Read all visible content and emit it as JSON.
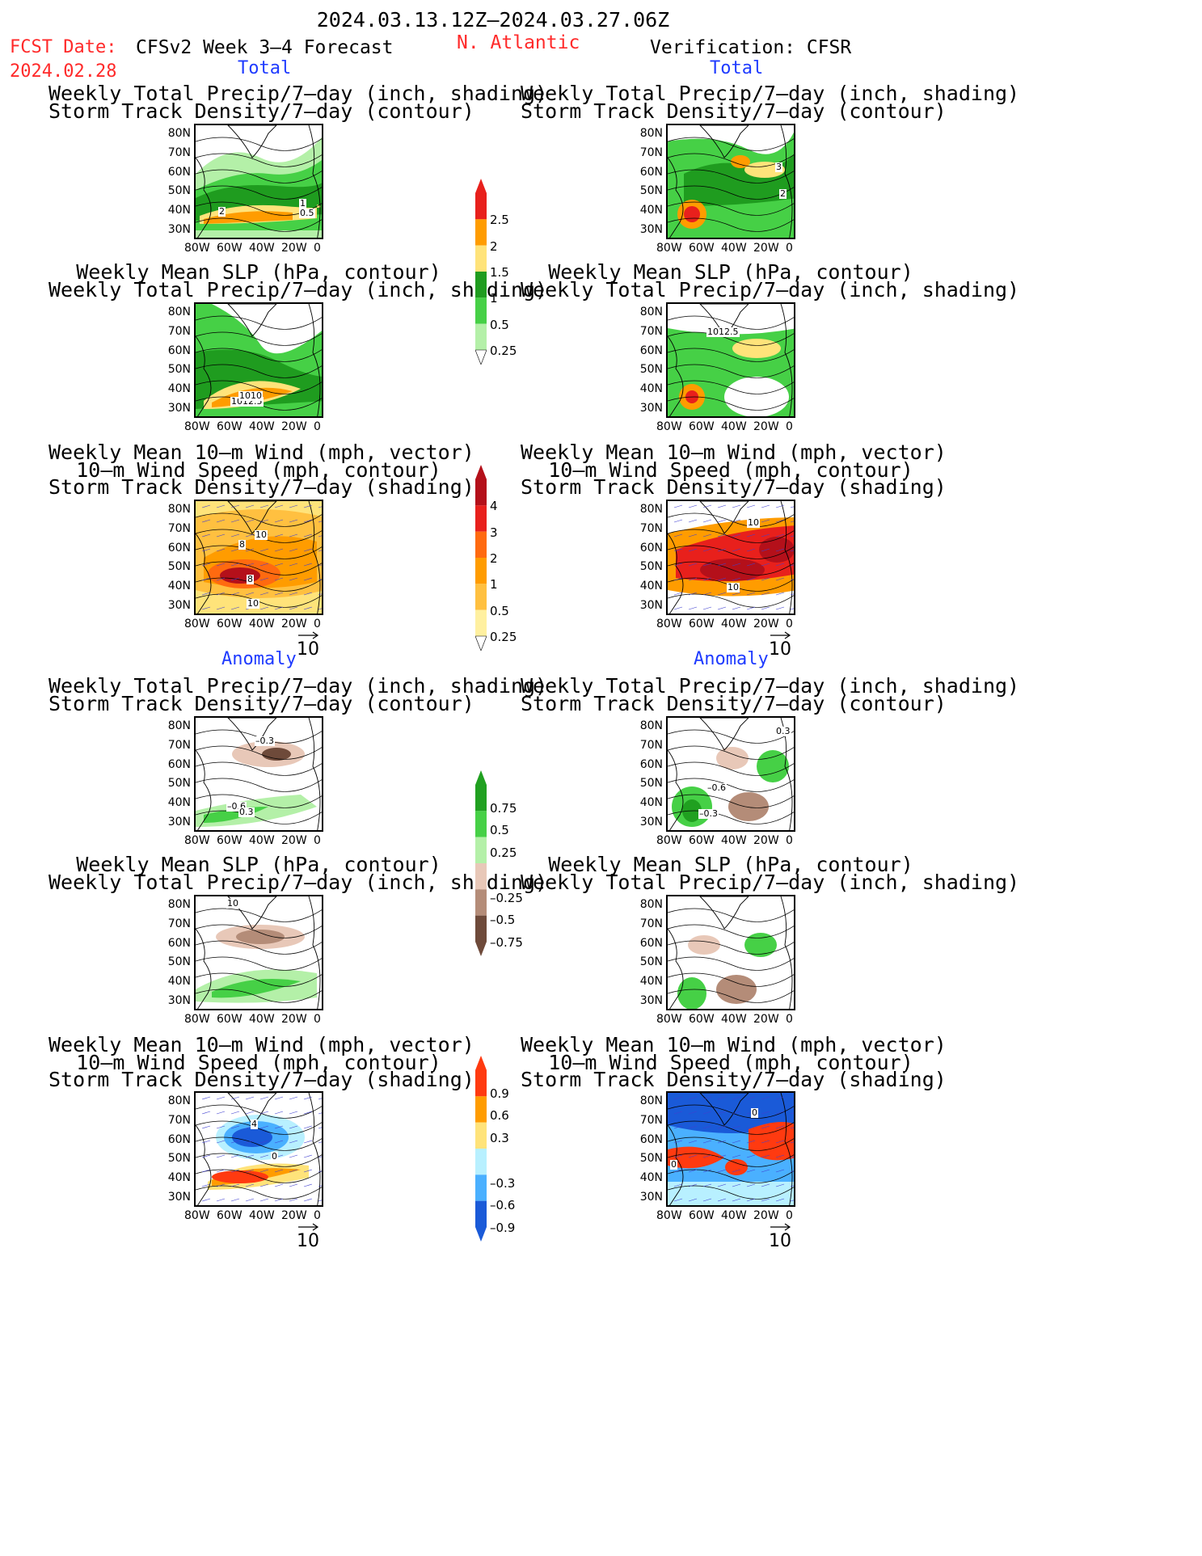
{
  "header": {
    "period": "2024.03.13.12Z–2024.03.27.06Z",
    "fcst_label": "FCST Date:",
    "fcst_date": "2024.02.28",
    "model": "CFSv2 Week 3–4 Forecast",
    "region": "N. Atlantic",
    "verification": "Verification: CFSR"
  },
  "sections": {
    "total": "Total",
    "anomaly": "Anomaly"
  },
  "titles": {
    "precip_track": [
      "Weekly Total Precip/7–day (inch, shading)",
      "Storm Track Density/7–day (contour)"
    ],
    "slp_precip": [
      "Weekly Mean SLP (hPa, contour)",
      "Weekly Total Precip/7–day (inch, shading)"
    ],
    "wind": [
      "Weekly Mean 10–m Wind (mph, vector)",
      "10–m Wind Speed (mph, contour)",
      "Storm Track Density/7–day (shading)"
    ]
  },
  "axes": {
    "lat": [
      "80N",
      "70N",
      "60N",
      "50N",
      "40N",
      "30N"
    ],
    "lon": [
      "80W",
      "60W",
      "40W",
      "20W",
      "0"
    ]
  },
  "vector_ref": "10",
  "colorbars": {
    "precip_total": {
      "labels": [
        "2.5",
        "2",
        "1.5",
        "1",
        "0.5",
        "0.25"
      ],
      "colors": [
        "#e8201c",
        "#ff9c00",
        "#ffe37a",
        "#1f9c1f",
        "#46d046",
        "#b4f0a8"
      ]
    },
    "track_total": {
      "labels": [
        "4",
        "3",
        "2",
        "1",
        "0.5",
        "0.25"
      ],
      "colors": [
        "#b4101a",
        "#e8201c",
        "#ff6a10",
        "#ff9c00",
        "#ffc040",
        "#fff0a0"
      ]
    },
    "precip_anom": {
      "labels": [
        "0.75",
        "0.5",
        "0.25",
        "–0.25",
        "–0.5",
        "–0.75"
      ],
      "colors": [
        "#20a020",
        "#46d046",
        "#b4f0a8",
        "#e8c8b8",
        "#b48c78",
        "#6e4a3a"
      ]
    },
    "track_anom": {
      "labels": [
        "0.9",
        "0.6",
        "0.3",
        "–0.3",
        "–0.6",
        "–0.9"
      ],
      "colors": [
        "#ff3a10",
        "#ff9c00",
        "#ffe37a",
        "#b8f0ff",
        "#4ab0ff",
        "#1a5ad8"
      ]
    }
  },
  "contour_labels": {
    "t1l": [
      "2",
      "1",
      "0.5"
    ],
    "t1r": [
      "3",
      "2"
    ],
    "t2l": [
      "1012.5",
      "1010"
    ],
    "t2r": [
      "1012.5"
    ],
    "t3l": [
      "10",
      "8",
      "8",
      "10"
    ],
    "t3r": [
      "10",
      "10"
    ],
    "a1l": [
      "–0.3",
      "–0.6",
      "0.3"
    ],
    "a1r": [
      "0.3",
      "–0.6",
      "–0.3"
    ],
    "a2l": [
      "10"
    ],
    "a3l": [
      "4",
      "0"
    ],
    "a3r": [
      "0",
      "0"
    ]
  }
}
